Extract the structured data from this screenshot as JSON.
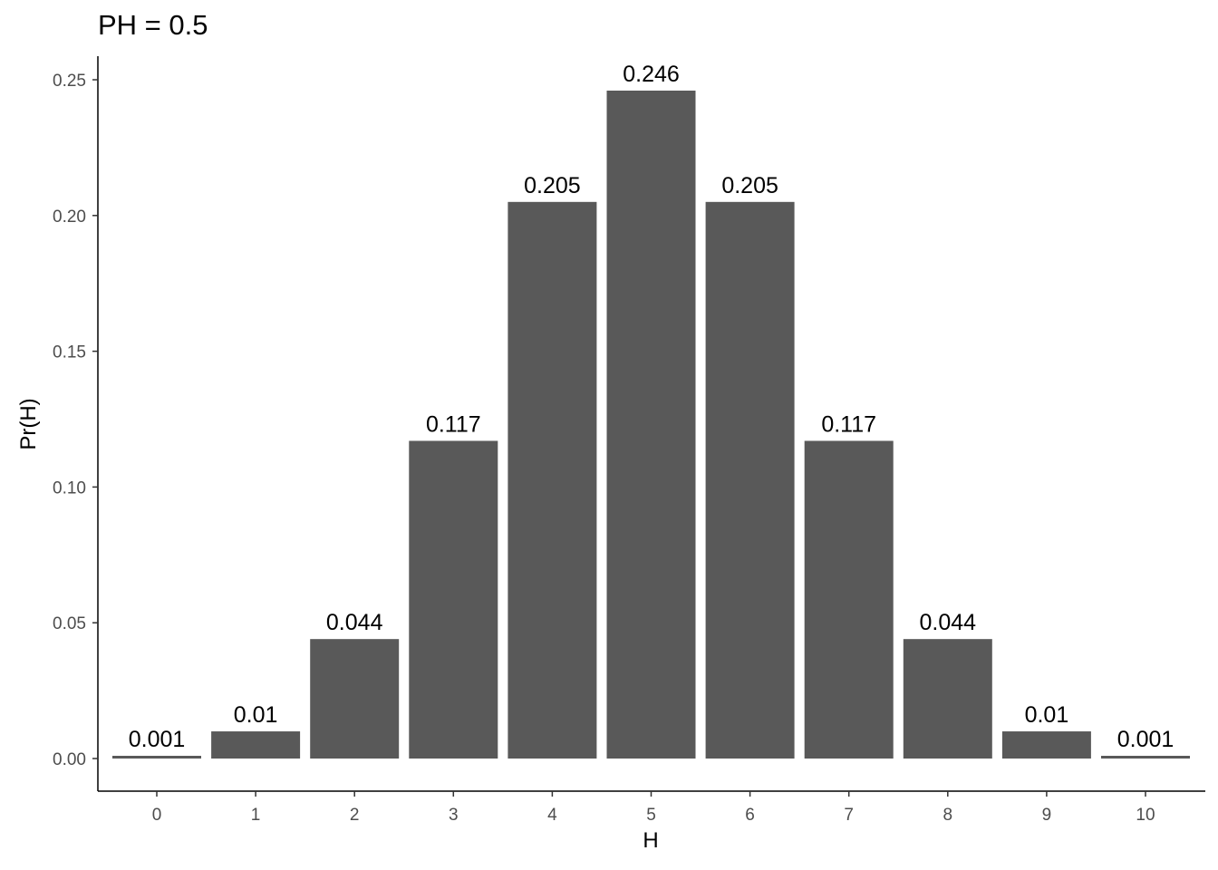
{
  "chart_data": {
    "type": "bar",
    "title": "PH = 0.5",
    "xlabel": "H",
    "ylabel": "Pr(H)",
    "categories": [
      "0",
      "1",
      "2",
      "3",
      "4",
      "5",
      "6",
      "7",
      "8",
      "9",
      "10"
    ],
    "values": [
      0.001,
      0.01,
      0.044,
      0.117,
      0.205,
      0.246,
      0.205,
      0.117,
      0.044,
      0.01,
      0.001
    ],
    "data_labels": [
      "0.001",
      "0.01",
      "0.044",
      "0.117",
      "0.205",
      "0.246",
      "0.205",
      "0.117",
      "0.044",
      "0.01",
      "0.001"
    ],
    "ylim": [
      0,
      0.25
    ],
    "yticks": [
      "0.00",
      "0.05",
      "0.10",
      "0.15",
      "0.20",
      "0.25"
    ],
    "ytick_values": [
      0,
      0.05,
      0.1,
      0.15,
      0.2,
      0.25
    ],
    "bar_color": "#595959",
    "grid": false,
    "legend": "none"
  }
}
